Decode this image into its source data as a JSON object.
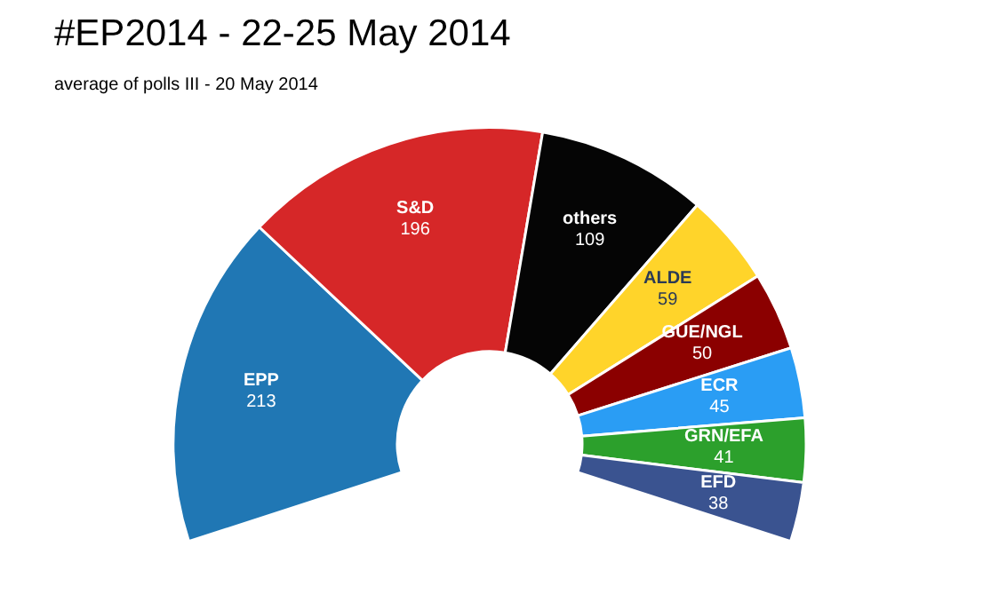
{
  "chart_data": {
    "type": "donut",
    "title": "#EP2014 - 22-25 May 2014",
    "subtitle": "average of polls III - 20 May 2014",
    "categories": [
      "EPP",
      "S&D",
      "others",
      "ALDE",
      "GUE/NGL",
      "ECR",
      "GRN/EFA",
      "EFD"
    ],
    "values": [
      213,
      196,
      109,
      59,
      50,
      45,
      41,
      38
    ],
    "colors": [
      "#2077b4",
      "#d62728",
      "#050505",
      "#ffd42a",
      "#8b0000",
      "#2a9df4",
      "#2ca02c",
      "#3a5390"
    ],
    "data_labels": true
  }
}
